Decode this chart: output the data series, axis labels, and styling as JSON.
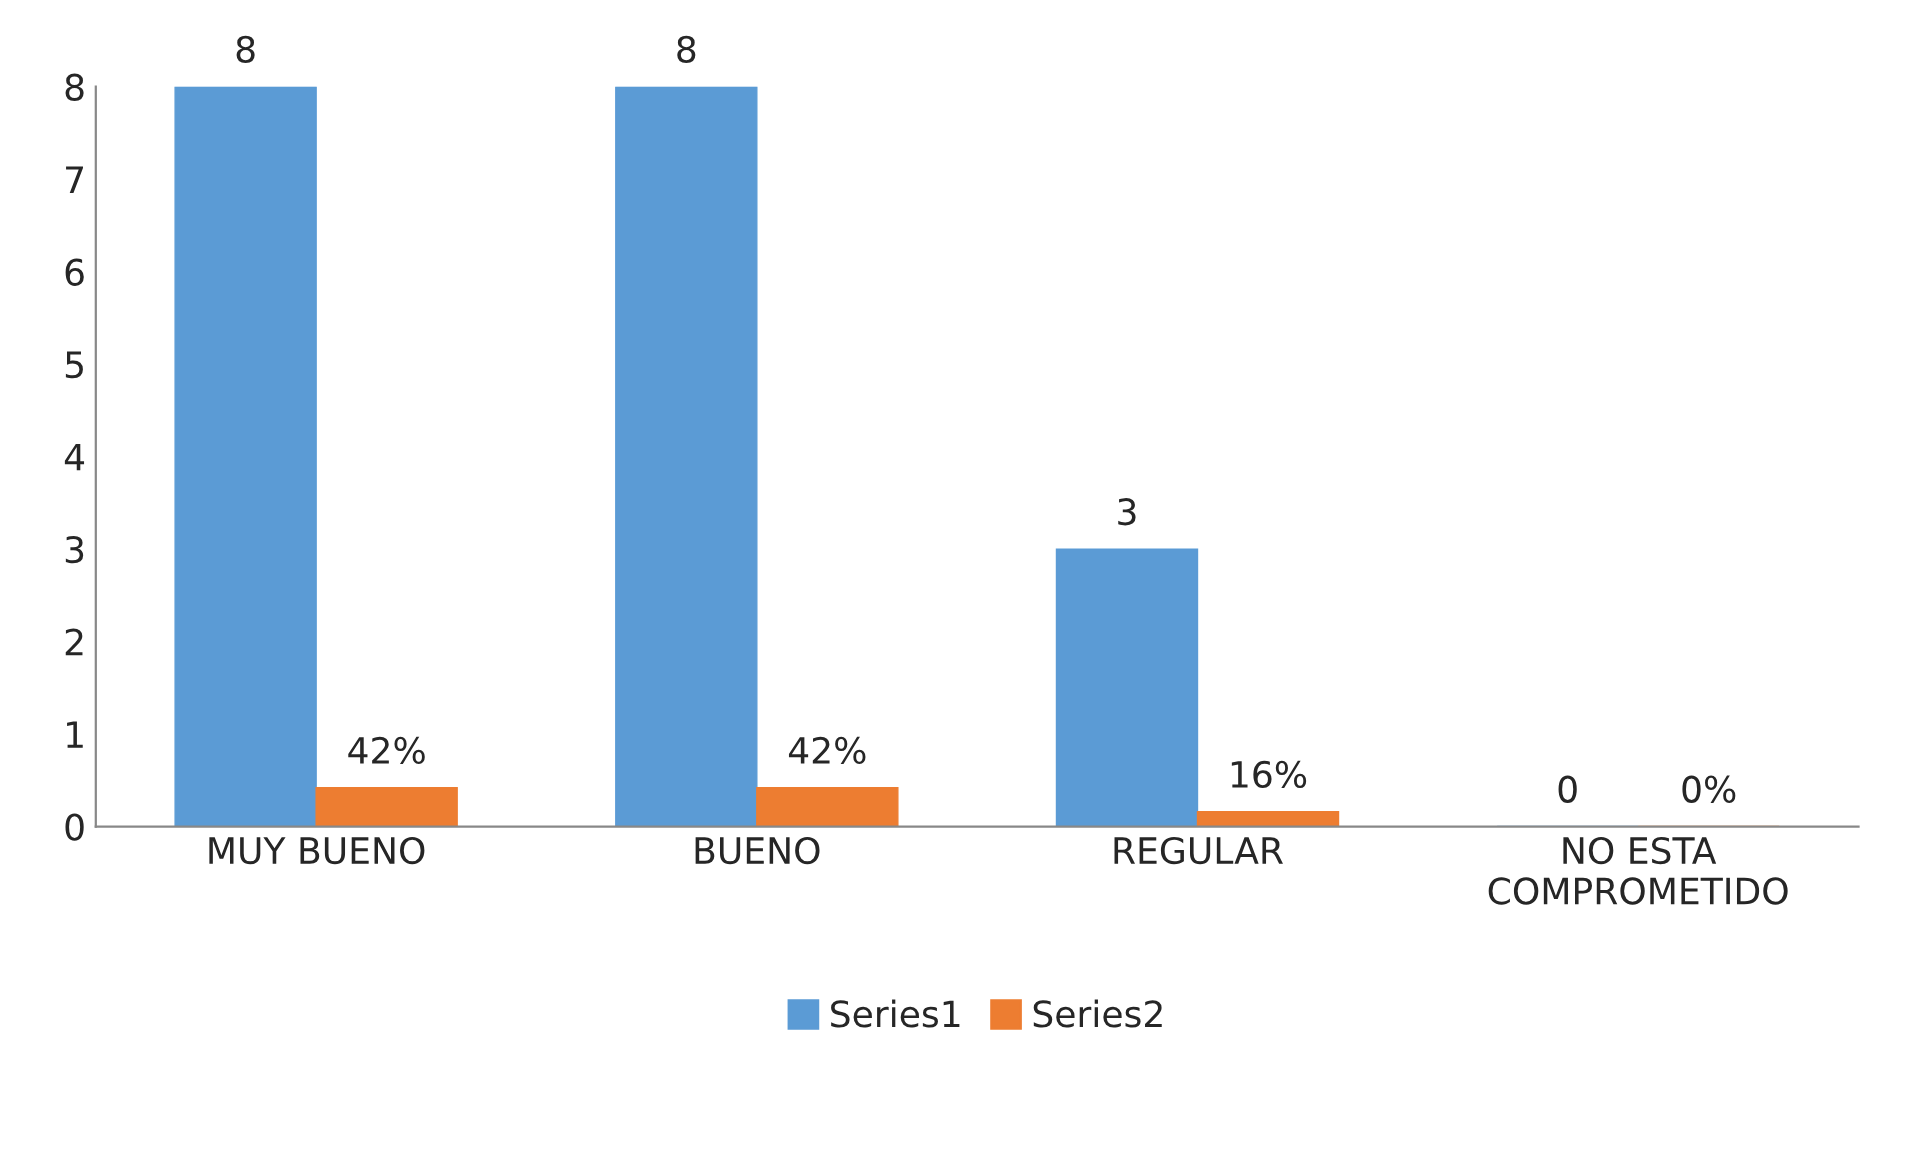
{
  "chart_data": {
    "type": "bar",
    "categories": [
      "MUY BUENO",
      "BUENO",
      "REGULAR",
      "NO ESTA\nCOMPROMETIDO"
    ],
    "series": [
      {
        "name": "Series1",
        "color": "#5b9bd5",
        "values": [
          8,
          8,
          3,
          0
        ],
        "value_labels": [
          "8",
          "8",
          "3",
          "0"
        ]
      },
      {
        "name": "Series2",
        "color": "#ed7d31",
        "values": [
          0.42,
          0.42,
          0.16,
          0
        ],
        "value_labels": [
          "42%",
          "42%",
          "16%",
          "0%"
        ]
      }
    ],
    "ylim": [
      0,
      8
    ],
    "yticks": [
      0,
      1,
      2,
      3,
      4,
      5,
      6,
      7,
      8
    ],
    "grid": false,
    "legend": "bottom"
  }
}
